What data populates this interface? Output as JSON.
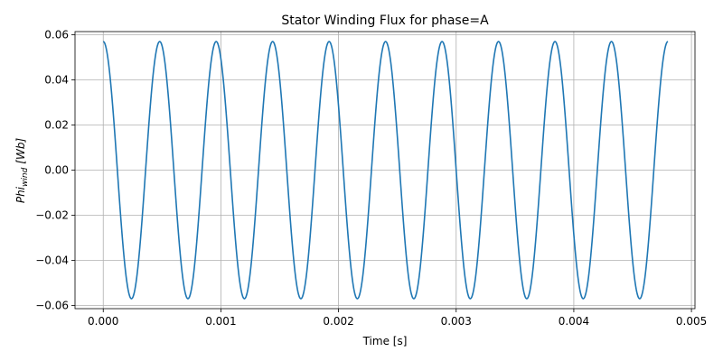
{
  "chart_data": {
    "type": "line",
    "title": "Stator Winding Flux for phase=A",
    "xlabel": "Time [s]",
    "ylabel_main": "Phi",
    "ylabel_sub": "wind",
    "ylabel_unit": "[Wb]",
    "xlim": [
      -0.00024,
      0.00503
    ],
    "ylim": [
      -0.0614,
      0.0614
    ],
    "grid": true,
    "x_ticks": [
      0.0,
      0.001,
      0.002,
      0.003,
      0.004,
      0.005
    ],
    "x_tick_labels": [
      "0.000",
      "0.001",
      "0.002",
      "0.003",
      "0.004",
      "0.005"
    ],
    "y_ticks": [
      0.06,
      0.04,
      0.02,
      0.0,
      -0.02,
      -0.04,
      -0.06
    ],
    "y_tick_labels": [
      "0.06",
      "0.04",
      "0.02",
      "0.00",
      "−0.02",
      "−0.04",
      "−0.06"
    ],
    "series": [
      {
        "color": "#1f77b4",
        "function": "sine",
        "amplitude": 0.057,
        "period": 0.00048,
        "phase_at_start": "peak",
        "x_start": 0.0,
        "x_end": 0.0048,
        "samples": 961
      }
    ]
  }
}
